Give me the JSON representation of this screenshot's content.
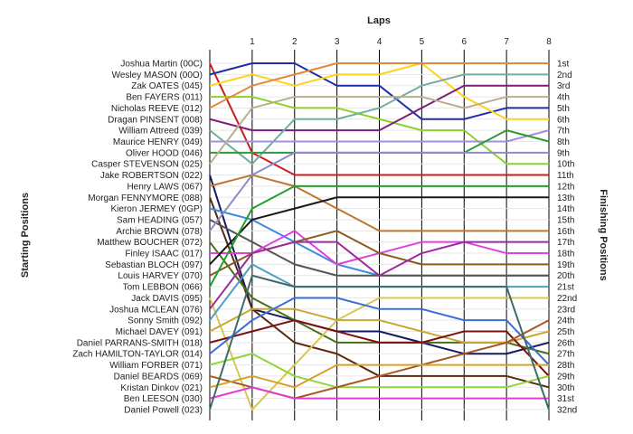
{
  "chart_data": {
    "type": "line",
    "title": "Laps",
    "left_axis_label": "Starting Positions",
    "right_axis_label": "Finishing Positions",
    "x_ticks": [
      1,
      2,
      3,
      4,
      5,
      6,
      7,
      8
    ],
    "x_range": [
      0,
      8
    ],
    "y_range": [
      1,
      32
    ],
    "grid": true,
    "position_labels": [
      "1st",
      "2nd",
      "3rd",
      "4th",
      "5th",
      "6th",
      "7th",
      "8th",
      "9th",
      "10th",
      "11th",
      "12th",
      "13th",
      "14th",
      "15th",
      "16th",
      "17th",
      "18th",
      "19th",
      "20th",
      "21st",
      "22nd",
      "23rd",
      "24th",
      "25th",
      "26th",
      "27th",
      "28th",
      "29th",
      "30th",
      "31st",
      "32nd"
    ],
    "series": [
      {
        "name": "Joshua Martin (00C)",
        "color": "#cc1c1c",
        "values": [
          1,
          9,
          11,
          11,
          11,
          11,
          11,
          11,
          11
        ]
      },
      {
        "name": "Wesley MASON (00O)",
        "color": "#1f2fa8",
        "values": [
          2,
          1,
          1,
          3,
          3,
          6,
          6,
          5,
          5
        ]
      },
      {
        "name": "Zak OATES (045)",
        "color": "#ffd21e",
        "values": [
          3,
          2,
          3,
          2,
          2,
          1,
          4,
          6,
          6
        ]
      },
      {
        "name": "Ben FAYERS (011)",
        "color": "#8fcf2c",
        "values": [
          4,
          4,
          5,
          5,
          6,
          7,
          7,
          10,
          10
        ]
      },
      {
        "name": "Nicholas REEVE (012)",
        "color": "#e08a3c",
        "values": [
          5,
          3,
          2,
          1,
          1,
          1,
          1,
          1,
          1
        ]
      },
      {
        "name": "Dragan PINSENT (008)",
        "color": "#7a1f7a",
        "values": [
          6,
          7,
          7,
          7,
          7,
          5,
          3,
          3,
          3
        ]
      },
      {
        "name": "William Attreed (039)",
        "color": "#6faea0",
        "values": [
          7,
          10,
          6,
          6,
          5,
          3,
          2,
          2,
          2
        ]
      },
      {
        "name": "Maurice HENRY (049)",
        "color": "#a090d8",
        "values": [
          8,
          8,
          8,
          8,
          8,
          8,
          8,
          8,
          7
        ]
      },
      {
        "name": "Oliver HOOD (046)",
        "color": "#2e9b3a",
        "values": [
          9,
          9,
          9,
          9,
          9,
          9,
          9,
          7,
          8
        ]
      },
      {
        "name": "Casper STEVENSON (025)",
        "color": "#b9ae8d",
        "values": [
          10,
          5,
          4,
          4,
          4,
          4,
          5,
          4,
          4
        ]
      },
      {
        "name": "Jake ROBERTSON (022)",
        "color": "#131c63",
        "values": [
          11,
          23,
          24,
          25,
          25,
          26,
          27,
          27,
          26
        ]
      },
      {
        "name": "Henry LAWS (067)",
        "color": "#c0762f",
        "values": [
          12,
          11,
          12,
          14,
          16,
          16,
          16,
          16,
          16
        ]
      },
      {
        "name": "Morgan FENNYMORE (088)",
        "color": "#5a2a10",
        "values": [
          13,
          23,
          26,
          27,
          29,
          29,
          29,
          29,
          30
        ]
      },
      {
        "name": "Kieron JERMEY (0GP)",
        "color": "#3a8cde",
        "values": [
          14,
          15,
          17,
          19,
          20,
          20,
          20,
          20,
          20
        ]
      },
      {
        "name": "Sam HEADING (057)",
        "color": "#555555",
        "values": [
          15,
          17,
          19,
          20,
          20,
          20,
          20,
          20,
          20
        ]
      },
      {
        "name": "Archie BROWN (078)",
        "color": "#8c8cc8",
        "values": [
          16,
          11,
          9,
          9,
          9,
          9,
          9,
          9,
          9
        ]
      },
      {
        "name": "Matthew BOUCHER (072)",
        "color": "#4a6d1c",
        "values": [
          17,
          22,
          24,
          26,
          26,
          26,
          26,
          26,
          27
        ]
      },
      {
        "name": "Finley ISAAC (017)",
        "color": "#e040e0",
        "values": [
          18,
          18,
          16,
          19,
          18,
          17,
          17,
          18,
          18
        ]
      },
      {
        "name": "Sebastian BLOCH (097)",
        "color": "#1a1a1a",
        "values": [
          19,
          15,
          14,
          13,
          13,
          13,
          13,
          13,
          13
        ]
      },
      {
        "name": "Louis HARVEY (070)",
        "color": "#8c5a1e",
        "values": [
          20,
          18,
          17,
          16,
          18,
          19,
          19,
          19,
          19
        ]
      },
      {
        "name": "Tom LEBBON (066)",
        "color": "#23a02b",
        "values": [
          21,
          14,
          12,
          12,
          12,
          12,
          12,
          12,
          12
        ]
      },
      {
        "name": "Jack DAVIS (095)",
        "color": "#d6c850",
        "values": [
          22,
          32,
          28,
          24,
          22,
          22,
          22,
          22,
          22
        ]
      },
      {
        "name": "Joshua MCLEAN (076)",
        "color": "#9e2a9e",
        "values": [
          23,
          18,
          17,
          17,
          20,
          18,
          17,
          17,
          17
        ]
      },
      {
        "name": "Sonny Smith (092)",
        "color": "#4f9ec4",
        "values": [
          24,
          19,
          21,
          21,
          21,
          21,
          21,
          21,
          21
        ]
      },
      {
        "name": "Michael DAVEY (091)",
        "color": "#c9a832",
        "values": [
          25,
          23,
          23,
          24,
          24,
          25,
          26,
          26,
          25
        ]
      },
      {
        "name": "Daniel PARRANS-SMITH (018)",
        "color": "#7b1010",
        "values": [
          26,
          25,
          24,
          25,
          26,
          26,
          25,
          25,
          29
        ]
      },
      {
        "name": "Zach HAMILTON-TAYLOR (014)",
        "color": "#3b6ed6",
        "values": [
          27,
          24,
          22,
          22,
          23,
          23,
          24,
          24,
          28
        ]
      },
      {
        "name": "William FORBER (071)",
        "color": "#8fd63a",
        "values": [
          28,
          27,
          29,
          30,
          30,
          30,
          30,
          30,
          29
        ]
      },
      {
        "name": "Daniel BEARDS (069)",
        "color": "#a8561e",
        "values": [
          29,
          30,
          31,
          30,
          29,
          28,
          27,
          26,
          24
        ]
      },
      {
        "name": "Kristan Dinkov (021)",
        "color": "#d6a12a",
        "values": [
          30,
          29,
          30,
          28,
          28,
          28,
          28,
          28,
          28
        ]
      },
      {
        "name": "Ben LEESON (030)",
        "color": "#e23ad6",
        "values": [
          31,
          30,
          31,
          31,
          31,
          31,
          31,
          31,
          31
        ]
      },
      {
        "name": "Daniel Powell (023)",
        "color": "#3d6b6b",
        "values": [
          32,
          20,
          21,
          21,
          21,
          21,
          21,
          21,
          32
        ]
      }
    ]
  }
}
